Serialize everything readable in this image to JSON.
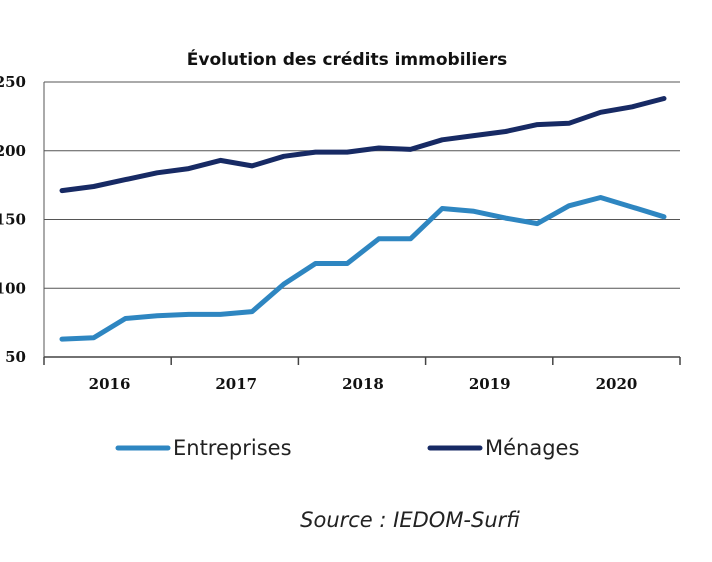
{
  "chart_data": {
    "type": "line",
    "title": "Évolution des crédits immobiliers",
    "xlabel": "",
    "ylabel": "",
    "ylim": [
      50,
      250
    ],
    "yticks": [
      50,
      100,
      150,
      200,
      250
    ],
    "ytick_labels": [
      "50",
      "100",
      "150",
      "200",
      "250"
    ],
    "x_group_labels": [
      "2016",
      "2017",
      "2018",
      "2019",
      "2020"
    ],
    "x": [
      "2016 T1",
      "2016 T2",
      "2016 T3",
      "2016 T4",
      "2017 T1",
      "2017 T2",
      "2017 T3",
      "2017 T4",
      "2018 T1",
      "2018 T2",
      "2018 T3",
      "2018 T4",
      "2019 T1",
      "2019 T2",
      "2019 T3",
      "2019 T4",
      "2020 T1",
      "2020 T2",
      "2020 T3",
      "2020 T4"
    ],
    "series": [
      {
        "name": "Entreprises",
        "color": "#2e86c1",
        "values": [
          63,
          64,
          78,
          80,
          81,
          81,
          83,
          103,
          118,
          118,
          136,
          136,
          158,
          156,
          151,
          147,
          160,
          166,
          159,
          152
        ]
      },
      {
        "name": "Ménages",
        "color": "#172a64",
        "values": [
          171,
          174,
          179,
          184,
          187,
          193,
          189,
          196,
          199,
          199,
          202,
          201,
          208,
          211,
          214,
          219,
          220,
          228,
          232,
          238
        ]
      }
    ],
    "grid": true,
    "legend": "bottom"
  },
  "source": "Source : IEDOM-Surfi"
}
